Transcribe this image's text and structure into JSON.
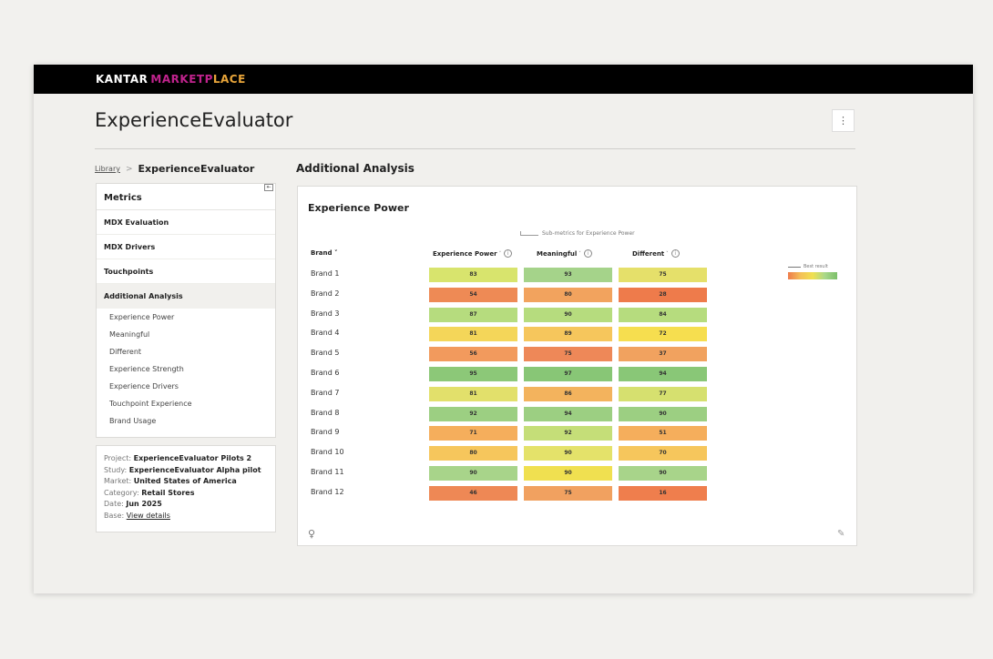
{
  "header": {
    "brand_main": "KANTAR",
    "brand_sub_pink": "MARKETP",
    "brand_sub_tail": "LACE"
  },
  "page": {
    "title": "ExperienceEvaluator",
    "kebab": "⋮"
  },
  "breadcrumb": {
    "library": "Library",
    "separator": ">",
    "current": "ExperienceEvaluator"
  },
  "section_title": "Additional Analysis",
  "sidebar": {
    "heading": "Metrics",
    "nav": [
      {
        "label": "MDX Evaluation"
      },
      {
        "label": "MDX Drivers"
      },
      {
        "label": "Touchpoints"
      },
      {
        "label": "Additional Analysis"
      }
    ],
    "sub_items": [
      "Experience Power",
      "Meaningful",
      "Different",
      "Experience Strength",
      "Experience Drivers",
      "Touchpoint Experience",
      "Brand Usage"
    ]
  },
  "info": {
    "project_label": "Project:",
    "project": "ExperienceEvaluator Pilots 2",
    "study_label": "Study:",
    "study": "ExperienceEvaluator Alpha pilot",
    "market_label": "Market:",
    "market": "United States of America",
    "category_label": "Category:",
    "category": "Retail Stores",
    "date_label": "Date:",
    "date": "Jun 2025",
    "base_label": "Base:",
    "base_link": "View details"
  },
  "panel": {
    "title": "Experience Power",
    "submetrics_label": "Sub-metrics for Experience Power",
    "brand_header": "Brand",
    "columns": [
      "Experience Power",
      "Meaningful",
      "Different"
    ],
    "legend_label": "Best result"
  },
  "table": {
    "rows": [
      {
        "brand": "Brand 1",
        "values": [
          83,
          93,
          75
        ]
      },
      {
        "brand": "Brand 2",
        "values": [
          54,
          80,
          28
        ]
      },
      {
        "brand": "Brand 3",
        "values": [
          87,
          90,
          84
        ]
      },
      {
        "brand": "Brand 4",
        "values": [
          81,
          89,
          72
        ]
      },
      {
        "brand": "Brand 5",
        "values": [
          56,
          75,
          37
        ]
      },
      {
        "brand": "Brand 6",
        "values": [
          95,
          97,
          94
        ]
      },
      {
        "brand": "Brand 7",
        "values": [
          81,
          86,
          77
        ]
      },
      {
        "brand": "Brand 8",
        "values": [
          92,
          94,
          90
        ]
      },
      {
        "brand": "Brand 9",
        "values": [
          71,
          92,
          51
        ]
      },
      {
        "brand": "Brand 10",
        "values": [
          80,
          90,
          70
        ]
      },
      {
        "brand": "Brand 11",
        "values": [
          90,
          90,
          90
        ]
      },
      {
        "brand": "Brand 12",
        "values": [
          46,
          75,
          16
        ]
      }
    ],
    "colors": [
      [
        "#d8e46d",
        "#a5d38a",
        "#e5e06a"
      ],
      [
        "#ee8a55",
        "#f2a35e",
        "#ee7b4b"
      ],
      [
        "#b6dc7e",
        "#b6dc7e",
        "#b6dc7e"
      ],
      [
        "#f4d659",
        "#f6c65c",
        "#f6de4f"
      ],
      [
        "#f29a5d",
        "#ee8858",
        "#f1a25f"
      ],
      [
        "#8cc878",
        "#88c676",
        "#89c777"
      ],
      [
        "#e2e06b",
        "#f3b35d",
        "#d6e06f"
      ],
      [
        "#9ccf82",
        "#9ccf82",
        "#9ccf82"
      ],
      [
        "#f5ae5c",
        "#c5de78",
        "#f5ae5c"
      ],
      [
        "#f6c65c",
        "#e4e26a",
        "#f6c65c"
      ],
      [
        "#a8d48a",
        "#f0e050",
        "#a8d48a"
      ],
      [
        "#ee8855",
        "#f1a160",
        "#ef7e4d"
      ]
    ]
  }
}
